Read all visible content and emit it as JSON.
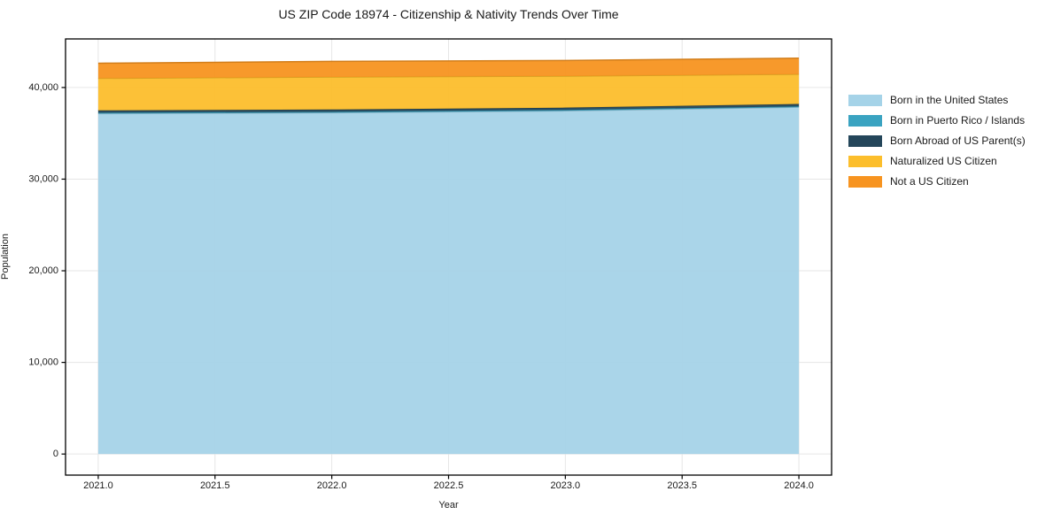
{
  "title": "US ZIP Code 18974 - Citizenship & Nativity Trends Over Time",
  "chart_data": {
    "type": "area",
    "stacked": true,
    "title": "US ZIP Code 18974 - Citizenship & Nativity Trends Over Time",
    "xlabel": "Year",
    "ylabel": "Population",
    "x": [
      2021,
      2022,
      2023,
      2024
    ],
    "series": [
      {
        "name": "Born in the United States",
        "color": "#a5d3e8",
        "values": [
          37150,
          37250,
          37450,
          37850
        ]
      },
      {
        "name": "Born in Puerto Rico / Islands",
        "color": "#3aa3c1",
        "values": [
          100,
          100,
          100,
          100
        ]
      },
      {
        "name": "Born Abroad of US Parent(s)",
        "color": "#24465a",
        "values": [
          250,
          250,
          250,
          250
        ]
      },
      {
        "name": "Naturalized US Citizen",
        "color": "#fcbe2c",
        "values": [
          3500,
          3550,
          3450,
          3250
        ]
      },
      {
        "name": "Not a US Citizen",
        "color": "#f79420",
        "values": [
          1650,
          1700,
          1700,
          1750
        ]
      }
    ],
    "totals": [
      42650,
      42850,
      42950,
      43200
    ],
    "xlim": [
      2020.86,
      2024.14
    ],
    "ylim": [
      -2300,
      45300
    ],
    "xticks": {
      "values": [
        2021.0,
        2021.5,
        2022.0,
        2022.5,
        2023.0,
        2023.5,
        2024.0
      ],
      "labels": [
        "2021.0",
        "2021.5",
        "2022.0",
        "2022.5",
        "2023.0",
        "2023.5",
        "2024.0"
      ]
    },
    "yticks": {
      "values": [
        0,
        10000,
        20000,
        30000,
        40000
      ],
      "labels": [
        "0",
        "10,000",
        "20,000",
        "30,000",
        "40,000"
      ]
    },
    "grid": true,
    "grid_color": "#e6e6e6",
    "spine_color": "#000000",
    "legend_position": "right"
  }
}
